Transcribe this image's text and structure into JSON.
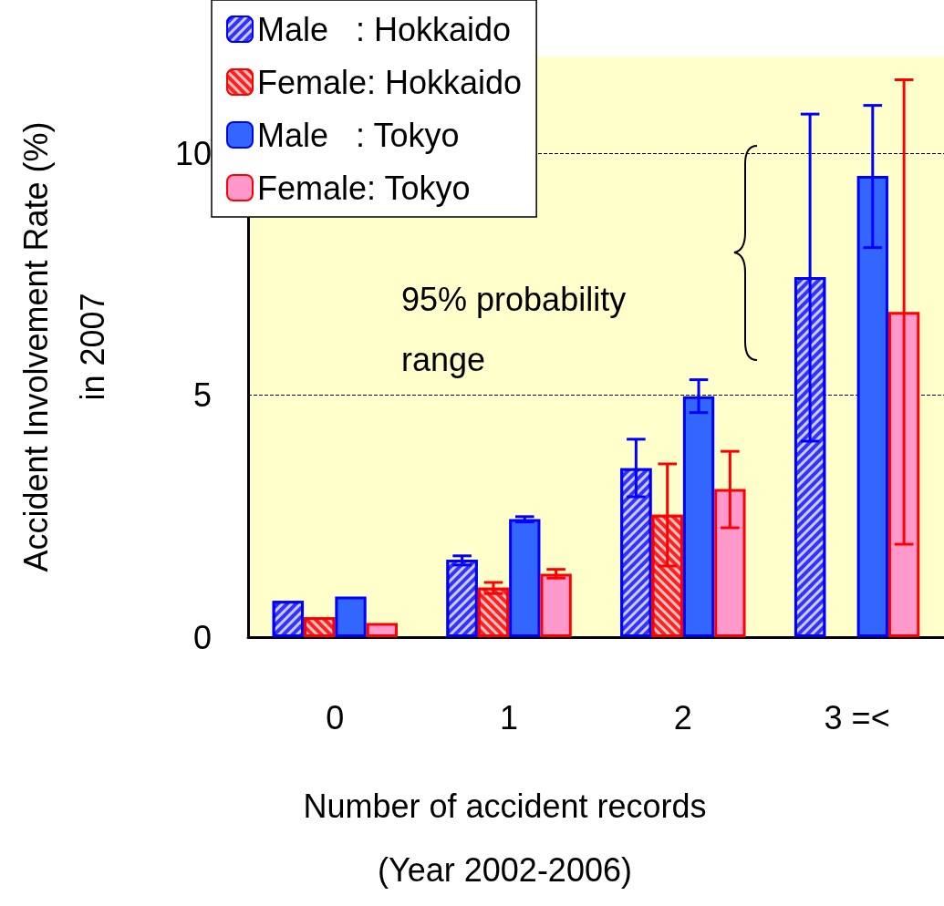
{
  "chart_data": {
    "type": "bar",
    "xlabel": "Number of accident records\n(Year 2002-2006)",
    "ylabel": "Accident Involvement Rate (%)\nin 2007",
    "categories": [
      "0",
      "1",
      "2",
      "3 =<"
    ],
    "series": [
      {
        "name": "Male   : Hokkaido",
        "color": "#3333ff",
        "values": [
          0.75,
          1.6,
          3.49,
          7.44
        ],
        "errors": [
          null,
          [
            1.49,
            1.68
          ],
          [
            2.9,
            4.09
          ],
          [
            4.05,
            10.81
          ]
        ]
      },
      {
        "name": "Female: Hokkaido",
        "color": "#ff2020",
        "values": [
          0.41,
          1.02,
          2.53,
          null
        ],
        "errors": [
          null,
          [
            0.9,
            1.13
          ],
          [
            1.47,
            3.58
          ],
          null
        ]
      },
      {
        "name": "Male   : Tokyo",
        "color": "#3366ff",
        "values": [
          0.84,
          2.44,
          4.98,
          9.53
        ],
        "errors": [
          null,
          [
            2.38,
            2.49
          ],
          [
            4.64,
            5.32
          ],
          [
            8.05,
            10.99
          ]
        ]
      },
      {
        "name": "Female: Tokyo",
        "color": "#ff99cc",
        "values": [
          0.29,
          1.31,
          3.06,
          6.72
        ],
        "errors": [
          null,
          [
            1.22,
            1.4
          ],
          [
            2.26,
            3.84
          ],
          [
            1.92,
            11.52
          ]
        ]
      }
    ],
    "ylim": [
      0,
      12
    ],
    "yticks": [
      0,
      5,
      10
    ],
    "grid": "y",
    "legend": "top left",
    "annotations": [
      "95% probability range"
    ]
  }
}
